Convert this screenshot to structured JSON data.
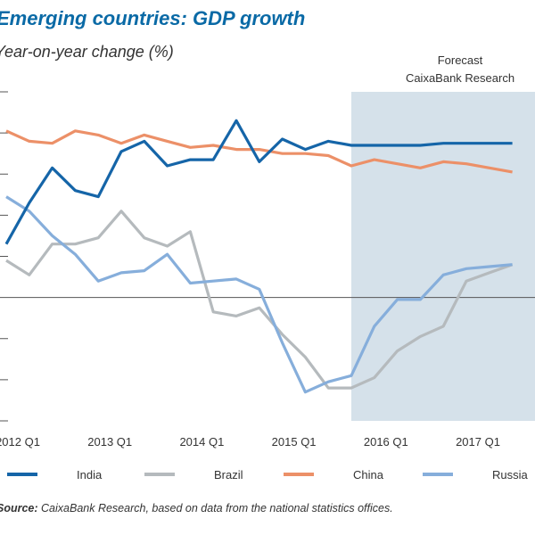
{
  "chart_data": {
    "type": "line",
    "title": "Emerging countries: GDP growth",
    "subtitle": "Year-on-year change (%)",
    "source_label": "Source:",
    "source_text": "CaixaBank Research, based on data from the national statistics offices.",
    "forecast_label_line1": "Forecast",
    "forecast_label_line2": "CaixaBank Research",
    "forecast_start_index": 15,
    "x_tick_labels": [
      {
        "index": 0,
        "label": "2012 Q1"
      },
      {
        "index": 4,
        "label": "2013 Q1"
      },
      {
        "index": 8,
        "label": "2014 Q1"
      },
      {
        "index": 12,
        "label": "2015 Q1"
      },
      {
        "index": 16,
        "label": "2016 Q1"
      },
      {
        "index": 20,
        "label": "2017 Q1"
      }
    ],
    "x_count": 23,
    "ylim": [
      -6,
      10
    ],
    "yticks": [
      -6,
      -4,
      -2,
      0,
      2,
      4,
      6,
      8,
      10
    ],
    "zero_line": 0,
    "series": [
      {
        "name": "India",
        "color": "#1565a8",
        "values": [
          2.6,
          4.6,
          6.3,
          5.2,
          4.9,
          7.1,
          7.6,
          6.4,
          6.7,
          6.7,
          8.6,
          6.6,
          7.7,
          7.2,
          7.6,
          7.4,
          7.4,
          7.4,
          7.4,
          7.5,
          7.5,
          7.5,
          7.5
        ]
      },
      {
        "name": "Brazil",
        "color": "#b5babd",
        "values": [
          1.8,
          1.1,
          2.6,
          2.6,
          2.9,
          4.2,
          2.9,
          2.5,
          3.2,
          -0.7,
          -0.9,
          -0.5,
          -1.8,
          -2.9,
          -4.4,
          -4.4,
          -3.9,
          -2.6,
          -1.9,
          -1.4,
          0.8,
          1.2,
          1.6
        ]
      },
      {
        "name": "China",
        "color": "#ec9068",
        "values": [
          8.1,
          7.6,
          7.5,
          8.1,
          7.9,
          7.5,
          7.9,
          7.6,
          7.3,
          7.4,
          7.2,
          7.2,
          7.0,
          7.0,
          6.9,
          6.4,
          6.7,
          6.5,
          6.3,
          6.6,
          6.5,
          6.3,
          6.1
        ]
      },
      {
        "name": "Russia",
        "color": "#86aedb",
        "values": [
          4.9,
          4.2,
          3.0,
          2.1,
          0.8,
          1.2,
          1.3,
          2.1,
          0.7,
          0.8,
          0.9,
          0.4,
          -2.2,
          -4.6,
          -4.1,
          -3.8,
          -1.4,
          -0.1,
          -0.1,
          1.1,
          1.4,
          1.5,
          1.6
        ]
      }
    ]
  }
}
